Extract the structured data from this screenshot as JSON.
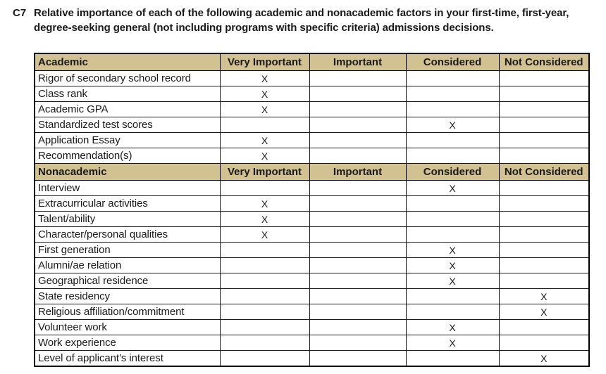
{
  "question": {
    "id": "C7",
    "text": "Relative importance of each of the following academic and nonacademic factors in your first-time, first-year, degree-seeking general (not including programs with specific criteria) admissions decisions."
  },
  "table": {
    "mark": "X",
    "header_bg": "#d2c191",
    "border_color": "#000000",
    "columns": [
      "Very Important",
      "Important",
      "Considered",
      "Not Considered"
    ],
    "sections": [
      {
        "label": "Academic",
        "rows": [
          {
            "factor": "Rigor of secondary school record",
            "rating": "Very Important"
          },
          {
            "factor": "Class rank",
            "rating": "Very Important"
          },
          {
            "factor": "Academic GPA",
            "rating": "Very Important"
          },
          {
            "factor": "Standardized test scores",
            "rating": "Considered"
          },
          {
            "factor": "Application Essay",
            "rating": "Very Important"
          },
          {
            "factor": "Recommendation(s)",
            "rating": "Very Important"
          }
        ]
      },
      {
        "label": "Nonacademic",
        "rows": [
          {
            "factor": "Interview",
            "rating": "Considered"
          },
          {
            "factor": "Extracurricular activities",
            "rating": "Very Important"
          },
          {
            "factor": "Talent/ability",
            "rating": "Very Important"
          },
          {
            "factor": "Character/personal qualities",
            "rating": "Very Important"
          },
          {
            "factor": "First generation",
            "rating": "Considered"
          },
          {
            "factor": "Alumni/ae relation",
            "rating": "Considered"
          },
          {
            "factor": "Geographical residence",
            "rating": "Considered"
          },
          {
            "factor": "State residency",
            "rating": "Not Considered"
          },
          {
            "factor": "Religious affiliation/commitment",
            "rating": "Not Considered"
          },
          {
            "factor": "Volunteer work",
            "rating": "Considered"
          },
          {
            "factor": "Work experience",
            "rating": "Considered"
          },
          {
            "factor": "Level of applicant’s interest",
            "rating": "Not Considered"
          }
        ]
      }
    ]
  }
}
